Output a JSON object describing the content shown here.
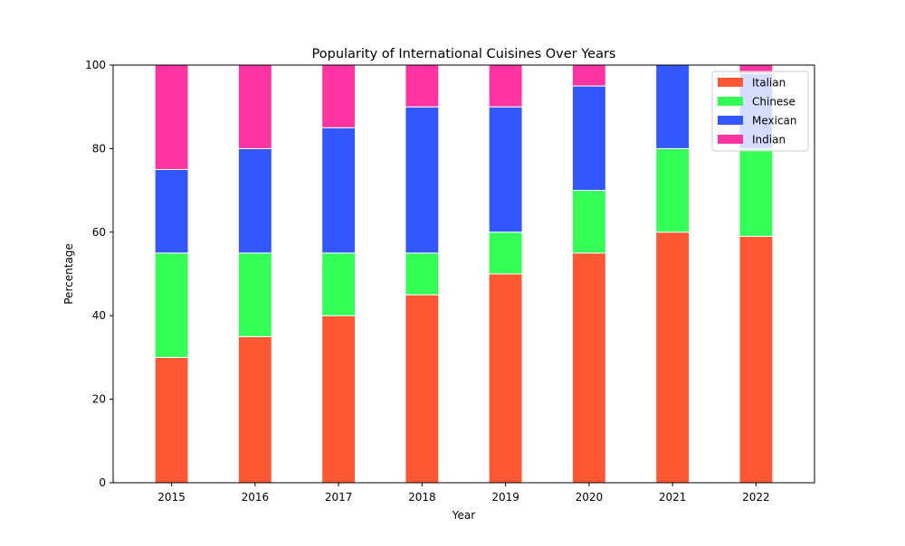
{
  "chart_data": {
    "type": "bar",
    "stacked": true,
    "title": "Popularity of International Cuisines Over Years",
    "xlabel": "Year",
    "ylabel": "Percentage",
    "ylim": [
      0,
      100
    ],
    "yticks": [
      0,
      20,
      40,
      60,
      80,
      100
    ],
    "grid": false,
    "legend_position": "top-right",
    "categories": [
      "2015",
      "2016",
      "2017",
      "2018",
      "2019",
      "2020",
      "2021",
      "2022"
    ],
    "series": [
      {
        "name": "Italian",
        "color": "#ff5733",
        "values": [
          30,
          35,
          40,
          45,
          50,
          55,
          60,
          59
        ]
      },
      {
        "name": "Chinese",
        "color": "#33ff57",
        "values": [
          25,
          20,
          15,
          10,
          10,
          15,
          20,
          21
        ]
      },
      {
        "name": "Mexican",
        "color": "#3357ff",
        "values": [
          20,
          25,
          30,
          35,
          30,
          25,
          20,
          18
        ]
      },
      {
        "name": "Indian",
        "color": "#ff33a1",
        "values": [
          25,
          20,
          15,
          10,
          10,
          5,
          0,
          2
        ]
      }
    ]
  }
}
